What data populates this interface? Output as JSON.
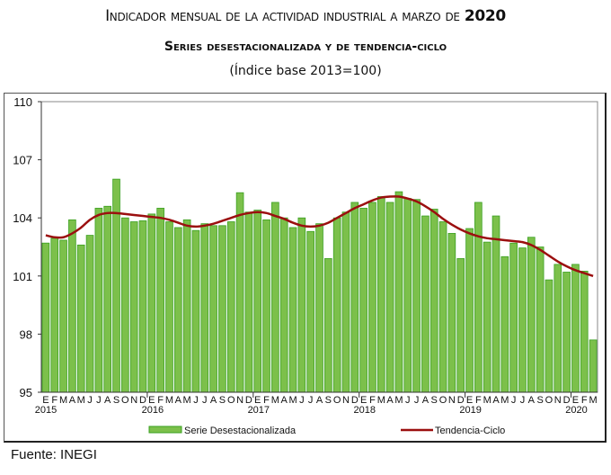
{
  "title": {
    "line1": "Indicador mensual de la actividad industrial a marzo de",
    "line1_year": "2020",
    "line2": "Series desestacionalizada y de tendencia-ciclo",
    "line3": "(Índice base 2013=100)"
  },
  "source": "Fuente: INEGI",
  "chart_data": {
    "type": "bar",
    "title": "Indicador mensual de la actividad industrial a marzo de 2020",
    "subtitle": "Series desestacionalizada y de tendencia-ciclo (Índice base 2013=100)",
    "xlabel": "",
    "ylabel": "",
    "ylim": [
      95,
      110
    ],
    "yticks": [
      95,
      98,
      101,
      104,
      107,
      110
    ],
    "grid": false,
    "legend": "bottom",
    "month_labels": [
      "E",
      "F",
      "M",
      "A",
      "M",
      "J",
      "J",
      "A",
      "S",
      "O",
      "N",
      "D"
    ],
    "years": [
      "2015",
      "2016",
      "2017",
      "2018",
      "2019",
      "2020"
    ],
    "colors": {
      "bars": "#7cc04b",
      "bar_edge": "#3aa020",
      "trend": "#9b0f0f"
    },
    "series": [
      {
        "name": "Serie Desestacionalizada",
        "type": "bar",
        "values": [
          102.7,
          102.95,
          102.85,
          103.9,
          102.6,
          103.1,
          104.5,
          104.6,
          106.0,
          104.0,
          103.8,
          103.85,
          104.2,
          104.5,
          103.8,
          103.5,
          103.9,
          103.35,
          103.7,
          103.6,
          103.6,
          103.8,
          105.3,
          104.3,
          104.4,
          103.9,
          104.8,
          104.0,
          103.5,
          104.0,
          103.3,
          103.7,
          101.9,
          104.0,
          104.3,
          104.8,
          104.5,
          104.8,
          105.1,
          104.8,
          105.35,
          105.0,
          104.95,
          104.1,
          104.45,
          103.8,
          103.2,
          101.9,
          103.45,
          104.8,
          102.75,
          104.1,
          102.0,
          102.7,
          102.45,
          103.0,
          102.5,
          100.8,
          101.6,
          101.2,
          101.6,
          101.25,
          97.7
        ]
      },
      {
        "name": "Tendencia-Ciclo",
        "type": "line",
        "values": [
          103.1,
          103.0,
          103.0,
          103.2,
          103.5,
          103.9,
          104.15,
          104.25,
          104.25,
          104.2,
          104.15,
          104.1,
          104.05,
          104.0,
          103.9,
          103.75,
          103.6,
          103.55,
          103.6,
          103.7,
          103.85,
          104.0,
          104.15,
          104.25,
          104.3,
          104.25,
          104.1,
          103.95,
          103.75,
          103.6,
          103.55,
          103.6,
          103.75,
          104.0,
          104.25,
          104.5,
          104.7,
          104.9,
          105.05,
          105.1,
          105.1,
          105.0,
          104.85,
          104.6,
          104.3,
          103.95,
          103.65,
          103.4,
          103.2,
          103.05,
          102.95,
          102.9,
          102.85,
          102.8,
          102.75,
          102.6,
          102.35,
          102.05,
          101.75,
          101.5,
          101.3,
          101.15,
          101.0
        ]
      }
    ]
  }
}
